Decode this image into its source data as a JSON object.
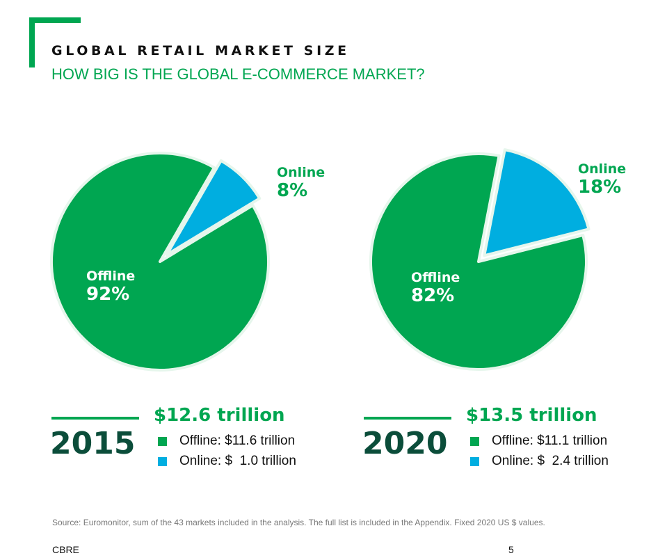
{
  "header": {
    "title": "GLOBAL RETAIL MARKET SIZE",
    "subtitle": "HOW BIG IS THE GLOBAL E-COMMERCE MARKET?"
  },
  "colors": {
    "offline": "#00a651",
    "online": "#00aee0",
    "dark_green": "#0b4d3a"
  },
  "chart_data": [
    {
      "type": "pie",
      "year": "2015",
      "total": "$12.6 trillion",
      "slices": [
        {
          "name": "Offline",
          "value": 92,
          "label": "92%",
          "color": "#00a651"
        },
        {
          "name": "Online",
          "value": 8,
          "label": "8%",
          "color": "#00aee0"
        }
      ],
      "legend": [
        {
          "text": "Offline: $11.6 trillion",
          "color": "#00a651"
        },
        {
          "text": "Online: $  1.0 trillion",
          "color": "#00aee0"
        }
      ]
    },
    {
      "type": "pie",
      "year": "2020",
      "total": "$13.5 trillion",
      "slices": [
        {
          "name": "Offline",
          "value": 82,
          "label": "82%",
          "color": "#00a651"
        },
        {
          "name": "Online",
          "value": 18,
          "label": "18%",
          "color": "#00aee0"
        }
      ],
      "legend": [
        {
          "text": "Offline: $11.1 trillion",
          "color": "#00a651"
        },
        {
          "text": "Online: $  2.4 trillion",
          "color": "#00aee0"
        }
      ]
    }
  ],
  "footer": {
    "source": "Source: Euromonitor, sum of the 43 markets included in the analysis. The full list is included in the Appendix. Fixed 2020 US $ values.",
    "brand": "CBRE",
    "page_number": "5"
  }
}
